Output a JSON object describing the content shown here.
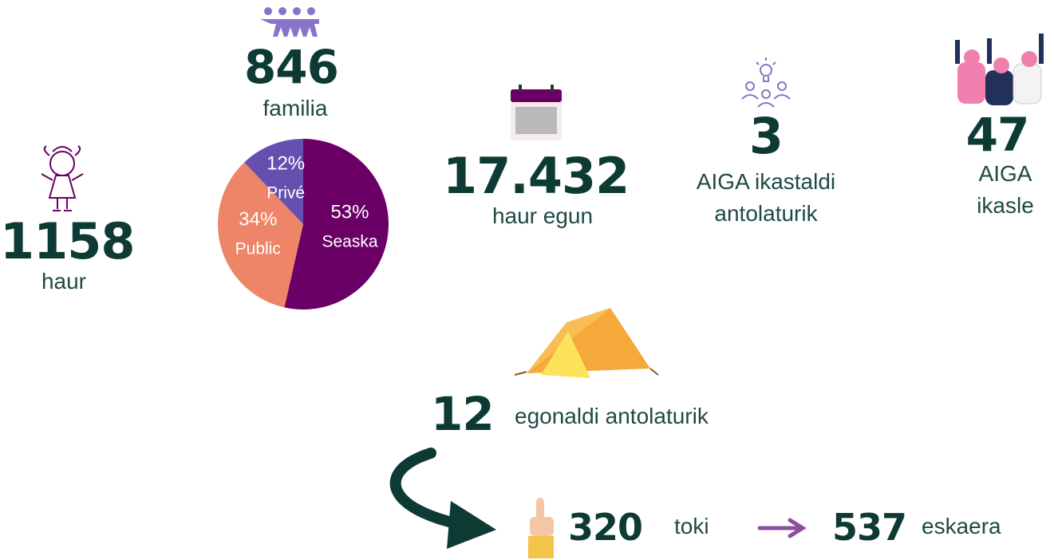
{
  "chart_data": {
    "type": "pie",
    "categories": [
      "Seaska",
      "Public",
      "Privé"
    ],
    "values": [
      53,
      34,
      12
    ],
    "value_labels": [
      "53%",
      "34%",
      "12%"
    ],
    "colors": [
      "#6a0066",
      "#ee8468",
      "#6550b0"
    ]
  },
  "stats": [
    {
      "number": "1158",
      "label": "haur"
    },
    {
      "number": "846",
      "label": "familia"
    },
    {
      "number": "17.432",
      "label": "haur egun"
    },
    {
      "number": "3",
      "label": "AIGA ikastaldi antolaturik"
    },
    {
      "number": "47",
      "label": "AIGA ikasle"
    },
    {
      "number": "12",
      "label": "egonaldi antolaturik"
    },
    {
      "number": "320",
      "label": "toki"
    },
    {
      "number": "537",
      "label": "eskaera"
    }
  ]
}
